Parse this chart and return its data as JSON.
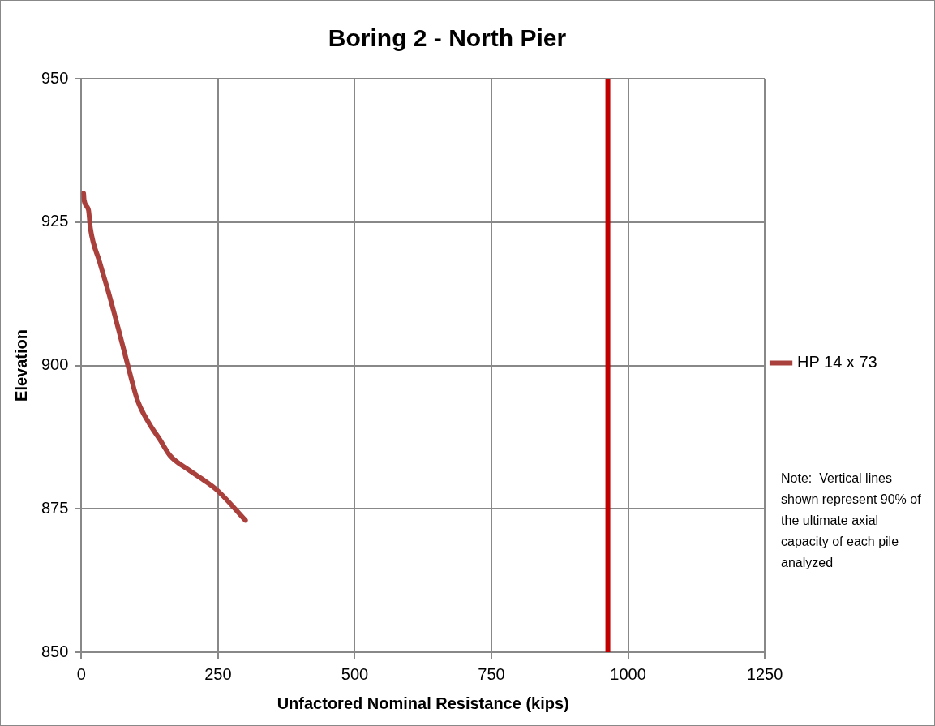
{
  "chart_data": {
    "type": "line",
    "title": "Boring 2 - North Pier",
    "xlabel": "Unfactored Nominal Resistance (kips)",
    "ylabel": "Elevation",
    "series": [
      {
        "name": "HP 14 x 73",
        "color": "#a9403c",
        "x": [
          4,
          5,
          13,
          16.5,
          33.5,
          51.5,
          67,
          85,
          103,
          124,
          144,
          162,
          196,
          227,
          250,
          300
        ],
        "values": [
          930,
          928.8,
          927.1,
          923.9,
          918,
          912.1,
          906.6,
          900,
          893.8,
          889.9,
          887,
          884.3,
          881.8,
          879.8,
          878.1,
          873
        ]
      }
    ],
    "xlim": [
      0,
      1250
    ],
    "xticks": [
      0,
      250,
      500,
      750,
      1000,
      1250
    ],
    "ylim": [
      850,
      950
    ],
    "yticks": [
      850,
      875,
      900,
      925,
      950
    ],
    "grid": true,
    "legend": "right",
    "marker": "none",
    "line_style": "solid",
    "ref_lines": [
      {
        "axis": "x",
        "value": 963,
        "color": "#c00000"
      }
    ],
    "annotations": [
      "Note:  Vertical lines shown represent 90% of the ultimate axial capacity of each pile analyzed"
    ]
  }
}
